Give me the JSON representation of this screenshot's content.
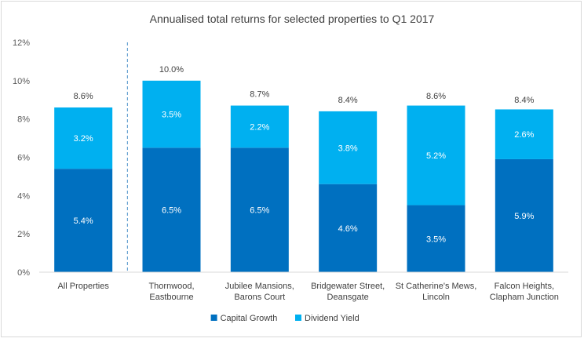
{
  "chart_data": {
    "type": "bar",
    "stacked": true,
    "title": "Annualised total returns for selected properties to Q1 2017",
    "xlabel": "",
    "ylabel": "",
    "ylim": [
      0,
      12
    ],
    "y_ticks": [
      "0%",
      "2%",
      "4%",
      "6%",
      "8%",
      "10%",
      "12%"
    ],
    "grid": false,
    "legend_position": "bottom",
    "categories": [
      [
        "All Properties"
      ],
      [
        "Thornwood,",
        "Eastbourne"
      ],
      [
        "Jubilee Mansions,",
        "Barons Court"
      ],
      [
        "Bridgewater Street,",
        "Deansgate"
      ],
      [
        "St Catherine's Mews,",
        "Lincoln"
      ],
      [
        "Falcon Heights,",
        "Clapham Junction"
      ]
    ],
    "series": [
      {
        "name": "Capital Growth",
        "color": "#0070c0",
        "values": [
          5.4,
          6.5,
          6.5,
          4.6,
          3.5,
          5.9
        ],
        "labels": [
          "5.4%",
          "6.5%",
          "6.5%",
          "4.6%",
          "3.5%",
          "5.9%"
        ]
      },
      {
        "name": "Dividend Yield",
        "color": "#00b0f0",
        "values": [
          3.2,
          3.5,
          2.2,
          3.8,
          5.2,
          2.6
        ],
        "labels": [
          "3.2%",
          "3.5%",
          "2.2%",
          "3.8%",
          "5.2%",
          "2.6%"
        ]
      }
    ],
    "totals": [
      8.6,
      10.0,
      8.7,
      8.4,
      8.6,
      8.4
    ],
    "total_labels": [
      "8.6%",
      "10.0%",
      "8.7%",
      "8.4%",
      "8.6%",
      "8.4%"
    ],
    "divider_after_category": 0
  }
}
